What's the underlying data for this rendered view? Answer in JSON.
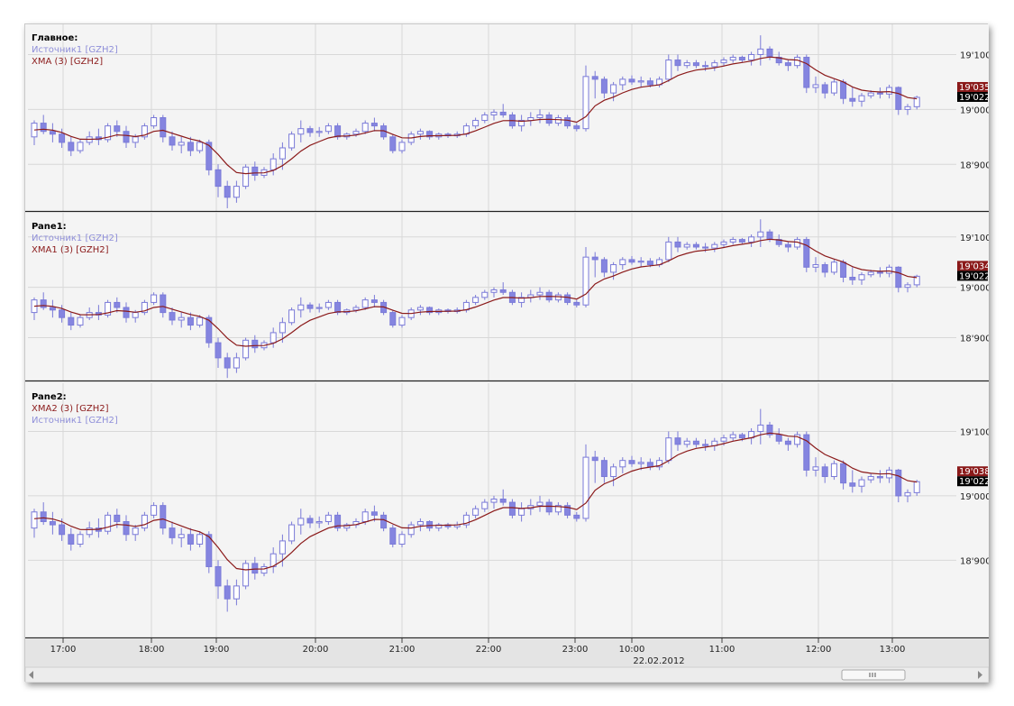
{
  "chart_data": {
    "type": "candlestick",
    "x_ticks": [
      "17:00",
      "18:00",
      "19:00",
      "20:00",
      "21:00",
      "22:00",
      "23:00",
      "10:00",
      "11:00",
      "12:00",
      "13:00"
    ],
    "x_date_label": "22.02.2012",
    "y_ticks": [
      "19'100",
      "19'000",
      "18'900"
    ],
    "colors": {
      "candle": "#8585e0",
      "candle_border": "#7a7ad8",
      "xma": "#8b1a1a",
      "tag_xma": "#8b1a1a",
      "tag_price": "#000000",
      "grid": "#d8d8d8"
    },
    "candles": [
      [
        18950,
        18980,
        18935,
        18975
      ],
      [
        18975,
        18990,
        18955,
        18960
      ],
      [
        18960,
        18975,
        18940,
        18955
      ],
      [
        18955,
        18965,
        18930,
        18940
      ],
      [
        18940,
        18950,
        18915,
        18925
      ],
      [
        18925,
        18945,
        18920,
        18940
      ],
      [
        18940,
        18960,
        18935,
        18950
      ],
      [
        18950,
        18965,
        18935,
        18945
      ],
      [
        18945,
        18975,
        18940,
        18970
      ],
      [
        18970,
        18980,
        18950,
        18960
      ],
      [
        18960,
        18970,
        18930,
        18940
      ],
      [
        18940,
        18955,
        18930,
        18950
      ],
      [
        18950,
        18975,
        18945,
        18970
      ],
      [
        18970,
        18990,
        18965,
        18985
      ],
      [
        18985,
        18990,
        18940,
        18950
      ],
      [
        18950,
        18960,
        18925,
        18935
      ],
      [
        18935,
        18950,
        18920,
        18940
      ],
      [
        18940,
        18950,
        18915,
        18925
      ],
      [
        18925,
        18945,
        18920,
        18940
      ],
      [
        18940,
        18945,
        18880,
        18890
      ],
      [
        18890,
        18900,
        18840,
        18860
      ],
      [
        18860,
        18870,
        18820,
        18840
      ],
      [
        18840,
        18870,
        18830,
        18860
      ],
      [
        18860,
        18900,
        18855,
        18895
      ],
      [
        18895,
        18905,
        18870,
        18880
      ],
      [
        18880,
        18895,
        18875,
        18890
      ],
      [
        18890,
        18920,
        18880,
        18910
      ],
      [
        18910,
        18940,
        18890,
        18930
      ],
      [
        18930,
        18960,
        18925,
        18955
      ],
      [
        18955,
        18980,
        18940,
        18965
      ],
      [
        18965,
        18970,
        18950,
        18958
      ],
      [
        18958,
        18968,
        18950,
        18960
      ],
      [
        18960,
        18975,
        18955,
        18970
      ],
      [
        18970,
        18975,
        18945,
        18950
      ],
      [
        18950,
        18958,
        18945,
        18955
      ],
      [
        18955,
        18965,
        18950,
        18960
      ],
      [
        18960,
        18980,
        18955,
        18975
      ],
      [
        18975,
        18985,
        18960,
        18970
      ],
      [
        18970,
        18975,
        18945,
        18950
      ],
      [
        18950,
        18955,
        18920,
        18925
      ],
      [
        18925,
        18945,
        18920,
        18940
      ],
      [
        18940,
        18960,
        18935,
        18955
      ],
      [
        18955,
        18965,
        18945,
        18960
      ],
      [
        18960,
        18962,
        18945,
        18950
      ],
      [
        18950,
        18958,
        18945,
        18955
      ],
      [
        18955,
        18958,
        18948,
        18952
      ],
      [
        18952,
        18960,
        18948,
        18955
      ],
      [
        18955,
        18975,
        18950,
        18970
      ],
      [
        18970,
        18985,
        18965,
        18980
      ],
      [
        18980,
        18995,
        18975,
        18990
      ],
      [
        18990,
        19000,
        18980,
        18995
      ],
      [
        18995,
        19010,
        18985,
        18990
      ],
      [
        18990,
        18995,
        18965,
        18970
      ],
      [
        18970,
        18990,
        18960,
        18980
      ],
      [
        18980,
        18995,
        18970,
        18985
      ],
      [
        18985,
        19000,
        18975,
        18990
      ],
      [
        18990,
        18995,
        18970,
        18975
      ],
      [
        18975,
        18990,
        18970,
        18985
      ],
      [
        18985,
        18990,
        18965,
        18970
      ],
      [
        18970,
        18975,
        18960,
        18965
      ],
      [
        18965,
        19080,
        18960,
        19060
      ],
      [
        19060,
        19070,
        19020,
        19055
      ],
      [
        19055,
        19060,
        19020,
        19030
      ],
      [
        19030,
        19050,
        19015,
        19045
      ],
      [
        19045,
        19060,
        19035,
        19055
      ],
      [
        19055,
        19062,
        19045,
        19050
      ],
      [
        19050,
        19060,
        19040,
        19052
      ],
      [
        19052,
        19058,
        19040,
        19045
      ],
      [
        19045,
        19060,
        19040,
        19055
      ],
      [
        19055,
        19100,
        19050,
        19090
      ],
      [
        19090,
        19100,
        19070,
        19080
      ],
      [
        19080,
        19090,
        19075,
        19085
      ],
      [
        19085,
        19090,
        19075,
        19080
      ],
      [
        19080,
        19088,
        19070,
        19078
      ],
      [
        19078,
        19090,
        19070,
        19085
      ],
      [
        19085,
        19095,
        19078,
        19090
      ],
      [
        19090,
        19100,
        19085,
        19095
      ],
      [
        19095,
        19098,
        19085,
        19090
      ],
      [
        19090,
        19105,
        19080,
        19100
      ],
      [
        19100,
        19135,
        19080,
        19110
      ],
      [
        19110,
        19115,
        19090,
        19095
      ],
      [
        19095,
        19105,
        19080,
        19085
      ],
      [
        19085,
        19090,
        19070,
        19080
      ],
      [
        19080,
        19100,
        19075,
        19095
      ],
      [
        19095,
        19100,
        19030,
        19040
      ],
      [
        19040,
        19060,
        19030,
        19045
      ],
      [
        19045,
        19050,
        19020,
        19030
      ],
      [
        19030,
        19055,
        19025,
        19050
      ],
      [
        19050,
        19055,
        19010,
        19020
      ],
      [
        19020,
        19040,
        19005,
        19015
      ],
      [
        19015,
        19030,
        19005,
        19025
      ],
      [
        19025,
        19035,
        19020,
        19030
      ],
      [
        19030,
        19040,
        19020,
        19028
      ],
      [
        19028,
        19045,
        19020,
        19040
      ],
      [
        19040,
        19042,
        18990,
        19000
      ],
      [
        19000,
        19010,
        18990,
        19005
      ],
      [
        19005,
        19025,
        19000,
        19022
      ]
    ],
    "panes": [
      {
        "title": "Главное:",
        "legend": [
          {
            "text": "Источник1 [GZH2]",
            "kind": "src"
          },
          {
            "text": "XMA (3) [GZH2]",
            "kind": "xma"
          }
        ],
        "y_min": 18815,
        "y_max": 19155,
        "xma_tag": "19'035",
        "price_tag": "19'022",
        "xma_offset": 0
      },
      {
        "title": "Pane1:",
        "legend": [
          {
            "text": "Источник1 [GZH2]",
            "kind": "src"
          },
          {
            "text": "XMA1 (3) [GZH2]",
            "kind": "xma"
          }
        ],
        "y_min": 18815,
        "y_max": 19148,
        "xma_tag": "19'034",
        "price_tag": "19'022",
        "xma_offset": 0
      },
      {
        "title": "Pane2:",
        "legend": [
          {
            "text": "XMA2 (3) [GZH2]",
            "kind": "xma"
          },
          {
            "text": "Источник1 [GZH2]",
            "kind": "src"
          }
        ],
        "y_min": 18780,
        "y_max": 19175,
        "xma_tag": "19'038",
        "price_tag": "19'022",
        "xma_offset": 2
      }
    ]
  }
}
